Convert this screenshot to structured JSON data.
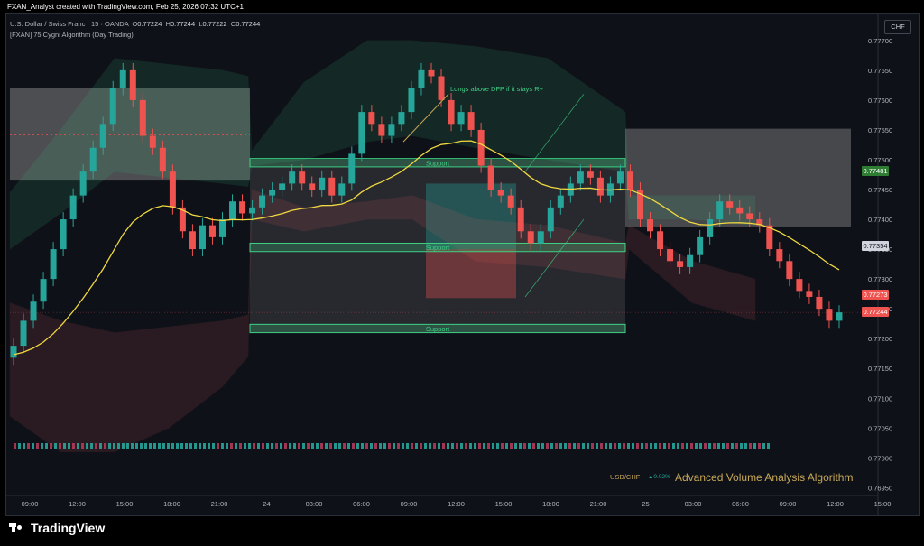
{
  "caption": "FXAN_Analyst created with TradingView.com, Feb 25, 2026 07:32 UTC+1",
  "legend": {
    "symbol": "U.S. Dollar / Swiss Franc · 15 · OANDA",
    "o_label": "O",
    "o": "0.77224",
    "h_label": "H",
    "h": "0.77244",
    "l_label": "L",
    "l": "0.77222",
    "c_label": "C",
    "c": "0.77244",
    "indicator": "[FXAN] 75 Cygni Algorithm (Day Trading)"
  },
  "currency_button": "CHF",
  "ticker": {
    "symbol": "USD/CHF",
    "change": "▲0.02%"
  },
  "algo_title": "Advanced Volume Analysis Algorithm",
  "brand": "TradingView",
  "colors": {
    "bull": "#26a69a",
    "bear": "#ef5350",
    "ma": "#f0d840",
    "green_band": "#3fcf84",
    "red_band": "#f06060"
  },
  "chart_data": {
    "type": "candlestick",
    "price_axis_labels": [
      "0.77700",
      "0.77650",
      "0.77600",
      "0.77550",
      "0.77500",
      "0.77450",
      "0.77400",
      "0.77350",
      "0.77300",
      "0.77250",
      "0.77200",
      "0.77150",
      "0.77100",
      "0.77050",
      "0.77000",
      "0.76950"
    ],
    "ylim": [
      0.7694,
      0.7773
    ],
    "time_axis_labels": [
      "09:00",
      "12:00",
      "15:00",
      "18:00",
      "21:00",
      "24",
      "03:00",
      "06:00",
      "09:00",
      "12:00",
      "15:00",
      "18:00",
      "21:00",
      "25",
      "03:00",
      "06:00",
      "09:00",
      "12:00",
      "15:00"
    ],
    "price_tags": [
      {
        "value": "0.77481",
        "kind": "level-green"
      },
      {
        "value": "0.77354",
        "kind": "level-grey"
      },
      {
        "value": "0.77273",
        "kind": "level-red"
      },
      {
        "value": "0.77244",
        "kind": "last-price"
      }
    ],
    "zones": [
      {
        "label": "Support",
        "level_top": 0.77502,
        "level_bottom": 0.77488
      },
      {
        "label": "Support",
        "level_top": 0.7736,
        "level_bottom": 0.77346
      },
      {
        "label": "Support",
        "level_top": 0.77224,
        "level_bottom": 0.7721
      }
    ],
    "annotation": "Longs above DFP if it stays R+",
    "close_path": [
      0.77188,
      0.7723,
      0.77262,
      0.773,
      0.7735,
      0.774,
      0.7744,
      0.7748,
      0.7752,
      0.7756,
      0.7762,
      0.7765,
      0.776,
      0.7754,
      0.7752,
      0.7748,
      0.7742,
      0.7738,
      0.7735,
      0.7739,
      0.7737,
      0.774,
      0.7743,
      0.7741,
      0.7742,
      0.7744,
      0.7745,
      0.7746,
      0.7748,
      0.7746,
      0.7745,
      0.7747,
      0.7744,
      0.7746,
      0.7751,
      0.7758,
      0.7756,
      0.7754,
      0.7756,
      0.7758,
      0.7762,
      0.7765,
      0.7764,
      0.776,
      0.7756,
      0.7758,
      0.7755,
      0.7749,
      0.7745,
      0.7744,
      0.7742,
      0.7738,
      0.7736,
      0.7738,
      0.7742,
      0.7744,
      0.7746,
      0.7748,
      0.7747,
      0.7744,
      0.7746,
      0.7748,
      0.7745,
      0.774,
      0.7738,
      0.7735,
      0.7733,
      0.7732,
      0.7734,
      0.7737,
      0.774,
      0.7743,
      0.7742,
      0.7741,
      0.774,
      0.7739,
      0.7735,
      0.7733,
      0.773,
      0.7728,
      0.7727,
      0.7725,
      0.7723,
      0.77244
    ]
  }
}
